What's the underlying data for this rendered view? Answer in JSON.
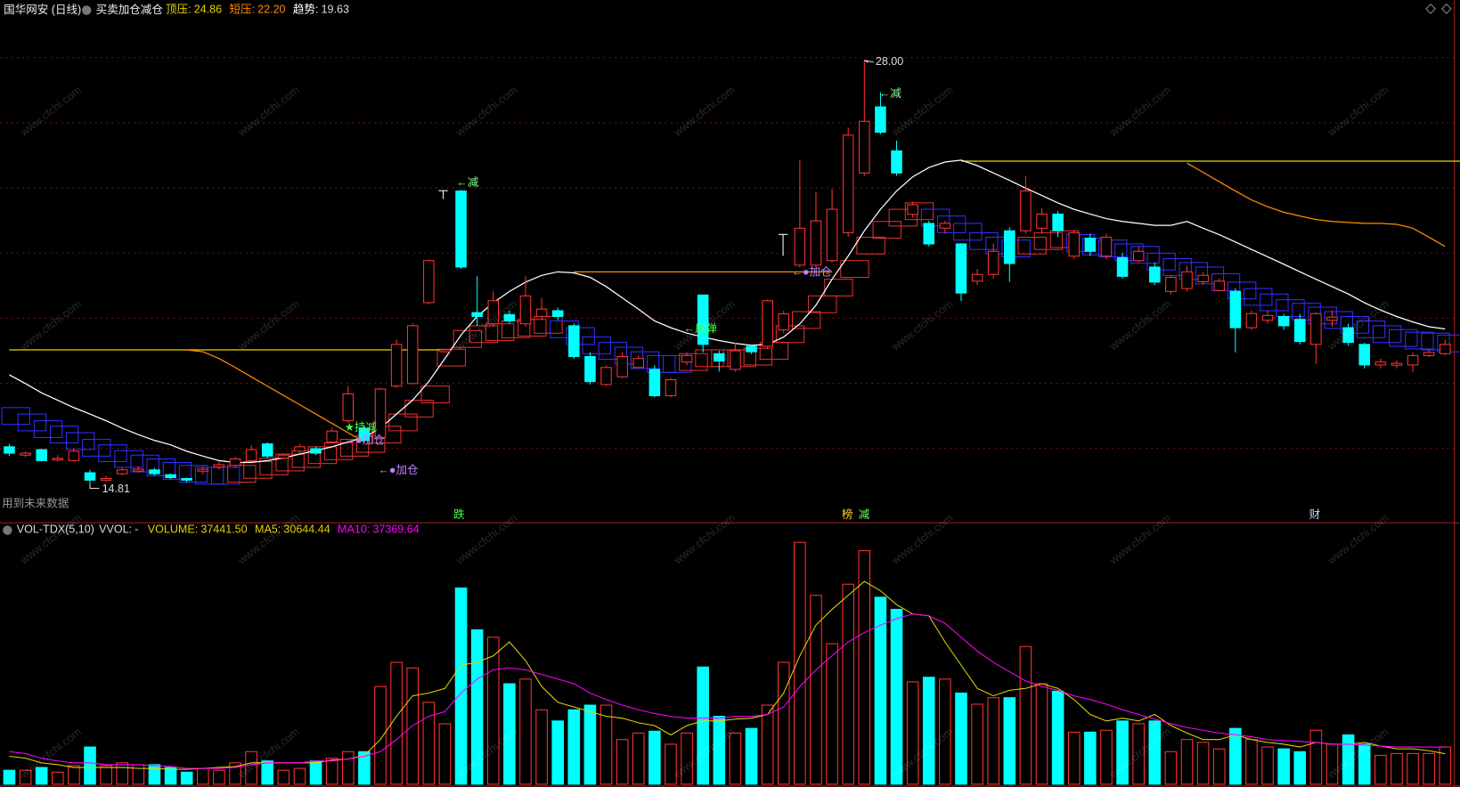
{
  "header": {
    "stock": "国华网安 (日线)",
    "indicator": "买卖加仓减仓",
    "note": "用到未来数据",
    "watermark": "www.cfchi.com"
  },
  "chart_data": [
    {
      "type": "candlestick",
      "up_color": "#ff3232",
      "down_color": "#00ffff",
      "ylim": [
        13.62,
        29.88
      ],
      "open": [
        15.96,
        15.7,
        15.87,
        15.55,
        15.53,
        15.15,
        14.92,
        15.12,
        15.2,
        15.24,
        15.09,
        14.97,
        15.2,
        15.33,
        15.38,
        15.53,
        16.05,
        15.61,
        15.82,
        15.9,
        16.11,
        16.77,
        16.54,
        16.25,
        17.85,
        17.93,
        20.45,
        18.92,
        23.93,
        20.14,
        19.79,
        20.08,
        19.79,
        20.02,
        20.2,
        19.73,
        18.77,
        17.9,
        18.14,
        18.43,
        18.37,
        17.55,
        18.6,
        20.69,
        18.86,
        18.37,
        19.09,
        19.09,
        19.6,
        21.62,
        21.62,
        21.76,
        22.63,
        24.49,
        26.55,
        25.18,
        23.2,
        22.92,
        22.77,
        22.28,
        21.12,
        21.33,
        22.69,
        22.69,
        22.77,
        23.21,
        21.9,
        22.46,
        21.9,
        21.85,
        21.76,
        21.56,
        20.8,
        20.89,
        21.1,
        20.83,
        20.8,
        19.67,
        19.9,
        20.02,
        19.93,
        19.15,
        19.9,
        19.67,
        19.15,
        18.51,
        18.5,
        18.51,
        18.8,
        18.86
      ],
      "close": [
        15.76,
        15.76,
        15.53,
        15.6,
        15.82,
        14.92,
        14.97,
        15.24,
        15.26,
        15.12,
        15.0,
        14.92,
        15.26,
        15.4,
        15.58,
        15.87,
        15.67,
        15.7,
        15.96,
        15.76,
        16.45,
        17.61,
        16.16,
        17.76,
        19.15,
        19.73,
        21.76,
        18.98,
        21.56,
        20.02,
        20.51,
        19.88,
        20.66,
        20.25,
        20.02,
        18.77,
        17.99,
        18.43,
        18.77,
        18.71,
        17.55,
        18.05,
        18.8,
        19.15,
        18.63,
        18.95,
        18.92,
        20.51,
        20.1,
        22.77,
        23.0,
        23.36,
        25.67,
        26.1,
        25.76,
        24.49,
        23.5,
        22.28,
        22.92,
        20.75,
        21.33,
        22.05,
        21.67,
        23.93,
        23.21,
        22.69,
        22.63,
        22.05,
        22.49,
        21.27,
        22.05,
        21.09,
        21.24,
        21.41,
        21.3,
        21.12,
        19.67,
        20.11,
        20.05,
        19.73,
        19.24,
        20.11,
        20.0,
        19.21,
        18.51,
        18.6,
        18.56,
        18.8,
        18.9,
        19.15
      ],
      "high": [
        16.05,
        15.82,
        15.9,
        15.7,
        15.9,
        15.24,
        15.06,
        15.3,
        15.35,
        15.3,
        15.12,
        15.0,
        15.35,
        15.5,
        15.65,
        16.0,
        16.1,
        15.76,
        16.05,
        15.96,
        16.55,
        17.85,
        16.6,
        17.8,
        19.3,
        19.8,
        21.8,
        19.0,
        23.96,
        21.27,
        20.8,
        20.2,
        21.27,
        20.6,
        20.3,
        19.8,
        18.9,
        18.5,
        18.9,
        18.8,
        18.5,
        18.1,
        18.9,
        20.7,
        18.95,
        19.2,
        19.15,
        20.55,
        20.2,
        24.9,
        23.9,
        24.0,
        25.9,
        28.0,
        27.0,
        25.5,
        23.6,
        23.0,
        23.0,
        22.3,
        21.5,
        22.3,
        22.8,
        24.4,
        23.4,
        23.3,
        22.7,
        22.6,
        22.6,
        22.0,
        22.2,
        21.7,
        21.3,
        21.6,
        21.4,
        21.2,
        20.9,
        20.2,
        20.2,
        20.1,
        20.1,
        20.15,
        20.2,
        19.8,
        19.2,
        18.7,
        18.65,
        18.9,
        19.0,
        19.3
      ],
      "low": [
        15.67,
        15.64,
        15.5,
        15.5,
        15.5,
        14.81,
        14.88,
        15.06,
        15.15,
        15.06,
        14.95,
        14.85,
        15.1,
        15.25,
        15.3,
        15.5,
        15.6,
        15.58,
        15.75,
        15.7,
        16.05,
        16.7,
        16.1,
        16.2,
        17.8,
        17.9,
        20.4,
        18.9,
        21.5,
        19.73,
        19.7,
        19.8,
        19.7,
        19.9,
        19.9,
        18.7,
        17.9,
        17.85,
        18.1,
        18.4,
        17.5,
        17.5,
        18.5,
        18.9,
        18.3,
        18.3,
        18.85,
        19.0,
        19.5,
        21.55,
        21.5,
        21.7,
        22.5,
        24.4,
        25.7,
        24.4,
        23.1,
        22.2,
        22.6,
        20.5,
        21.0,
        21.2,
        21.1,
        22.6,
        22.6,
        22.5,
        21.8,
        21.9,
        21.8,
        21.2,
        21.7,
        21.0,
        20.7,
        20.8,
        21.0,
        20.8,
        18.9,
        19.6,
        19.8,
        19.6,
        19.15,
        18.55,
        19.7,
        19.1,
        18.4,
        18.4,
        18.4,
        18.3,
        18.75,
        18.8
      ],
      "extreme_labels": [
        "28.00",
        "14.81"
      ],
      "box_values": [
        17.18,
        16.98,
        16.77,
        16.6,
        16.4,
        16.19,
        16.02,
        15.84,
        15.7,
        15.58,
        15.47,
        15.38,
        15.32,
        15.32,
        15.38,
        15.5,
        15.61,
        15.73,
        15.84,
        15.96,
        16.08,
        16.19,
        16.31,
        16.6,
        16.98,
        17.41,
        17.85,
        19.0,
        19.58,
        19.73,
        19.79,
        19.88,
        19.93,
        20.02,
        19.88,
        19.67,
        19.38,
        19.21,
        19.06,
        18.92,
        18.8,
        18.8,
        18.86,
        18.98,
        18.98,
        18.98,
        19.03,
        19.21,
        19.73,
        20.17,
        20.66,
        21.18,
        21.76,
        22.49,
        22.98,
        23.36,
        23.56,
        23.36,
        23.15,
        22.92,
        22.63,
        22.49,
        22.4,
        22.49,
        22.63,
        22.69,
        22.57,
        22.46,
        22.4,
        22.28,
        22.2,
        21.99,
        21.82,
        21.7,
        21.56,
        21.35,
        21.09,
        20.89,
        20.72,
        20.54,
        20.43,
        20.31,
        20.17,
        20.02,
        19.88,
        19.73,
        19.61,
        19.53,
        19.5,
        19.44
      ],
      "box_colors": [
        "#3030ff",
        "#e03030"
      ],
      "series": [
        {
          "name": "顶压:",
          "color": "#e6d200",
          "last_label": "24.86",
          "values": [
            18.98,
            18.98,
            18.98,
            18.98,
            18.98,
            18.98,
            18.98,
            18.98,
            18.98,
            18.98,
            18.98,
            18.98,
            18.98,
            18.98,
            18.98,
            18.98,
            18.98,
            18.98,
            18.98,
            18.98,
            18.98,
            18.98,
            18.98,
            18.98,
            18.98,
            18.98,
            18.98,
            18.98,
            null,
            null,
            null,
            null,
            null,
            null,
            null,
            null,
            null,
            null,
            null,
            null,
            null,
            null,
            null,
            null,
            null,
            null,
            null,
            null,
            null,
            null,
            null,
            null,
            null,
            null,
            null,
            null,
            null,
            null,
            null,
            24.86,
            24.86,
            24.86,
            24.86,
            24.86,
            24.86,
            24.86,
            24.86,
            24.86,
            24.86,
            24.86,
            24.86,
            24.86,
            24.86,
            24.86,
            24.86,
            24.86,
            24.86,
            24.86,
            24.86,
            24.86,
            24.86,
            24.86,
            24.86,
            24.86,
            24.86,
            24.86,
            24.86,
            24.86,
            24.86,
            24.86,
            24.86
          ]
        },
        {
          "name": "短压:",
          "color": "#ff8c00",
          "last_label": "22.20",
          "values": [
            null,
            null,
            null,
            null,
            null,
            null,
            null,
            null,
            null,
            null,
            null,
            18.98,
            18.92,
            18.71,
            18.43,
            18.14,
            17.85,
            17.56,
            17.27,
            16.98,
            16.69,
            16.4,
            16.11,
            null,
            null,
            null,
            null,
            null,
            null,
            null,
            null,
            null,
            null,
            null,
            null,
            21.41,
            21.41,
            21.41,
            21.41,
            21.41,
            21.41,
            21.41,
            21.41,
            21.41,
            21.41,
            21.41,
            21.41,
            21.41,
            21.41,
            21.41,
            21.41,
            21.41,
            null,
            null,
            null,
            null,
            null,
            null,
            null,
            null,
            null,
            null,
            null,
            null,
            null,
            null,
            null,
            null,
            null,
            null,
            null,
            null,
            null,
            24.8,
            24.51,
            24.22,
            23.93,
            23.65,
            23.44,
            23.27,
            23.15,
            23.04,
            22.98,
            22.95,
            22.92,
            22.92,
            22.89,
            22.77,
            22.49,
            22.2
          ]
        },
        {
          "name": "趋势:",
          "color": "#ffffff",
          "last_label": "19.63",
          "values": [
            18.2,
            17.93,
            17.64,
            17.41,
            17.18,
            16.98,
            16.77,
            16.54,
            16.34,
            16.16,
            16.02,
            15.82,
            15.67,
            15.53,
            15.47,
            15.47,
            15.53,
            15.61,
            15.73,
            15.84,
            15.96,
            16.11,
            16.25,
            16.54,
            16.98,
            17.41,
            17.99,
            18.71,
            19.44,
            20.02,
            20.45,
            20.8,
            21.09,
            21.3,
            21.41,
            21.38,
            21.24,
            20.95,
            20.6,
            20.25,
            19.88,
            19.67,
            19.5,
            19.38,
            19.27,
            19.18,
            19.12,
            19.15,
            19.38,
            19.79,
            20.37,
            21.18,
            21.9,
            22.69,
            23.36,
            23.93,
            24.37,
            24.66,
            24.83,
            24.89,
            24.72,
            24.49,
            24.26,
            24.02,
            23.79,
            23.56,
            23.36,
            23.21,
            23.07,
            22.98,
            22.92,
            22.86,
            22.86,
            22.98,
            22.77,
            22.57,
            22.34,
            22.11,
            21.88,
            21.65,
            21.41,
            21.18,
            20.95,
            20.72,
            20.45,
            20.22,
            20.02,
            19.85,
            19.7,
            19.63
          ]
        }
      ],
      "annotations": [
        {
          "text": "←减",
          "color": "#80ff80"
        },
        {
          "text": "←减",
          "color": "#80ff80"
        },
        {
          "text": "←●加仓",
          "color": "#c080ff"
        },
        {
          "text": "←●加仓",
          "color": "#c080ff"
        },
        {
          "text": "←●加仓",
          "color": "#c080ff"
        },
        {
          "text": "←反弹",
          "color": "#40ff40"
        },
        {
          "text": "★持减",
          "color": "#40ff40"
        }
      ],
      "markers": [
        {
          "text": "跌",
          "color": "#40ff40"
        },
        {
          "text": "榜",
          "color": "#ffd040"
        },
        {
          "text": "减",
          "color": "#60ff60"
        },
        {
          "text": "财",
          "color": "#c0d8ff"
        }
      ]
    },
    {
      "type": "volume",
      "title": "VOL-TDX(5,10)",
      "ylim": [
        0,
        262080
      ],
      "values": [
        14040,
        14040,
        16848,
        12168,
        18720,
        37440,
        18720,
        21528,
        19656,
        19656,
        16848,
        12168,
        15912,
        14040,
        21528,
        32760,
        23400,
        14040,
        15912,
        23400,
        26208,
        32760,
        32760,
        98280,
        122616,
        117000,
        82368,
        60840,
        197496,
        155376,
        147888,
        101088,
        105768,
        74880,
        63648,
        74880,
        79560,
        79560,
        44928,
        51480,
        53352,
        40248,
        51480,
        117936,
        68328,
        51480,
        56160,
        79560,
        122616,
        243360,
        190008,
        141336,
        201240,
        234936,
        188136,
        175968,
        102960,
        107640,
        105768,
        91728,
        80496,
        87048,
        87048,
        138528,
        101088,
        93600,
        52416,
        52416,
        54288,
        63648,
        60840,
        63648,
        32760,
        44928,
        42120,
        35568,
        56160,
        44928,
        37440,
        35568,
        32760,
        54288,
        40248,
        49608,
        40248,
        29016,
        30888,
        30888,
        30888,
        37441.5
      ],
      "items": [
        {
          "label": "VVOL:",
          "value": "-"
        },
        {
          "label": "VOLUME:",
          "value": "37441.50"
        }
      ],
      "series": [
        {
          "name": "MA5:",
          "color": "#e6d200",
          "last_label": "30644.44",
          "values": [
            28080,
            26208,
            21528,
            19656,
            16848,
            16848,
            16848,
            16848,
            15912,
            15912,
            14976,
            14976,
            15912,
            16848,
            17784,
            21528,
            21528,
            21528,
            21528,
            21528,
            24336,
            25272,
            29016,
            44928,
            68328,
            88920,
            91728,
            96408,
            119808,
            122616,
            129168,
            143208,
            124488,
            98280,
            82368,
            77688,
            73008,
            68328,
            66456,
            61776,
            58968,
            49608,
            58968,
            63648,
            63648,
            65520,
            66456,
            70200,
            91728,
            129168,
            160056,
            175968,
            190008,
            204048,
            194688,
            180648,
            171288,
            169416,
            143208,
            119808,
            96408,
            88920,
            94536,
            96408,
            101088,
            96408,
            85176,
            70200,
            63648,
            66456,
            63648,
            70200,
            58968,
            51480,
            44928,
            44928,
            49608,
            44928,
            42120,
            40248,
            37440,
            42120,
            40248,
            40248,
            42120,
            38376,
            35568,
            35568,
            33696,
            30644.44
          ]
        },
        {
          "name": "MA10:",
          "color": "#ff00ff",
          "last_label": "37369.64",
          "values": [
            32760,
            30888,
            26208,
            23400,
            21528,
            21528,
            19656,
            19656,
            19656,
            18720,
            17784,
            15912,
            15912,
            15912,
            16848,
            19656,
            21528,
            21528,
            21528,
            23400,
            23400,
            25272,
            28080,
            32760,
            44928,
            58968,
            68328,
            73008,
            91728,
            105768,
            115128,
            117000,
            115128,
            110448,
            105768,
            101088,
            91728,
            85176,
            79560,
            74880,
            71136,
            68328,
            66456,
            66456,
            66456,
            68328,
            68328,
            70200,
            77688,
            98280,
            115128,
            129168,
            143208,
            152568,
            160056,
            166608,
            171288,
            169416,
            161928,
            147888,
            133848,
            122616,
            113256,
            103896,
            98280,
            94536,
            88920,
            85176,
            80496,
            74880,
            70200,
            65520,
            60840,
            57096,
            54288,
            51480,
            49608,
            47736,
            44928,
            43992,
            43056,
            42120,
            40248,
            40248,
            39312,
            38376,
            37440,
            37440,
            37440,
            37369.64
          ]
        }
      ]
    }
  ]
}
